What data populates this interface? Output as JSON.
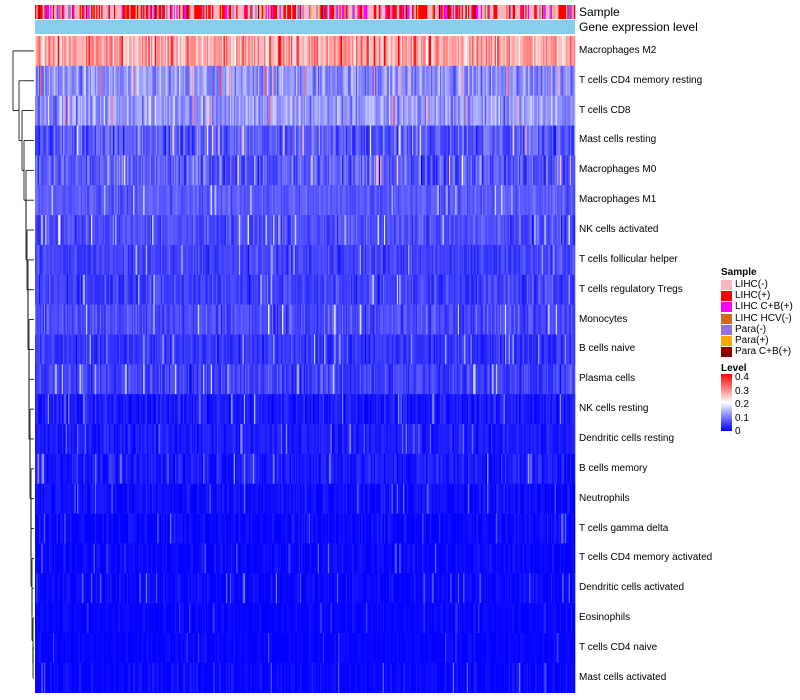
{
  "chart_data": {
    "type": "heatmap",
    "title": "",
    "column_annotation_tracks": [
      "Sample",
      "Gene expression level"
    ],
    "rows": [
      {
        "name": "Macrophages M2",
        "mean": 0.27,
        "spread": 0.1
      },
      {
        "name": "T cells CD4 memory resting",
        "mean": 0.11,
        "spread": 0.08
      },
      {
        "name": "T cells CD8",
        "mean": 0.12,
        "spread": 0.08
      },
      {
        "name": "Mast cells resting",
        "mean": 0.07,
        "spread": 0.07
      },
      {
        "name": "Macrophages M0",
        "mean": 0.07,
        "spread": 0.08
      },
      {
        "name": "Macrophages M1",
        "mean": 0.07,
        "spread": 0.04
      },
      {
        "name": "NK cells activated",
        "mean": 0.06,
        "spread": 0.05
      },
      {
        "name": "T cells follicular helper",
        "mean": 0.05,
        "spread": 0.04
      },
      {
        "name": "T cells regulatory  Tregs",
        "mean": 0.05,
        "spread": 0.05
      },
      {
        "name": "Monocytes",
        "mean": 0.06,
        "spread": 0.05
      },
      {
        "name": "B cells naive",
        "mean": 0.04,
        "spread": 0.04
      },
      {
        "name": "Plasma cells",
        "mean": 0.05,
        "spread": 0.05
      },
      {
        "name": "NK cells resting",
        "mean": 0.02,
        "spread": 0.04
      },
      {
        "name": "Dendritic cells resting",
        "mean": 0.02,
        "spread": 0.03
      },
      {
        "name": "B cells memory",
        "mean": 0.02,
        "spread": 0.04
      },
      {
        "name": "Neutrophils",
        "mean": 0.01,
        "spread": 0.03
      },
      {
        "name": "T cells gamma delta",
        "mean": 0.005,
        "spread": 0.03
      },
      {
        "name": "T cells CD4 memory activated",
        "mean": 0.005,
        "spread": 0.03
      },
      {
        "name": "Dendritic cells activated",
        "mean": 0.005,
        "spread": 0.03
      },
      {
        "name": "Eosinophils",
        "mean": 0.003,
        "spread": 0.02
      },
      {
        "name": "T cells CD4 naive",
        "mean": 0.003,
        "spread": 0.02
      },
      {
        "name": "Mast cells activated",
        "mean": 0.005,
        "spread": 0.03
      }
    ],
    "n_columns": 424,
    "color_scale": {
      "title": "Level",
      "min": 0,
      "max": 0.4,
      "ticks": [
        "0.4",
        "0.3",
        "0.2",
        "0.1",
        "0"
      ],
      "colors": [
        "#0000ff",
        "#ffffff",
        "#ff0000"
      ]
    },
    "sample_legend": {
      "title": "Sample",
      "items": [
        {
          "label": "LIHC(-)",
          "color": "#ffb6c1"
        },
        {
          "label": "LIHC(+)",
          "color": "#ff0000"
        },
        {
          "label": "LIHC C+B(+)",
          "color": "#ff00ff"
        },
        {
          "label": "LIHC HCV(-)",
          "color": "#d2691e"
        },
        {
          "label": "Para(-)",
          "color": "#9370db"
        },
        {
          "label": "Para(+)",
          "color": "#ffa500"
        },
        {
          "label": "Para C+B(+)",
          "color": "#8b0000"
        }
      ]
    },
    "gene_expression_color": "#87ceeb",
    "legend_position": "right"
  }
}
